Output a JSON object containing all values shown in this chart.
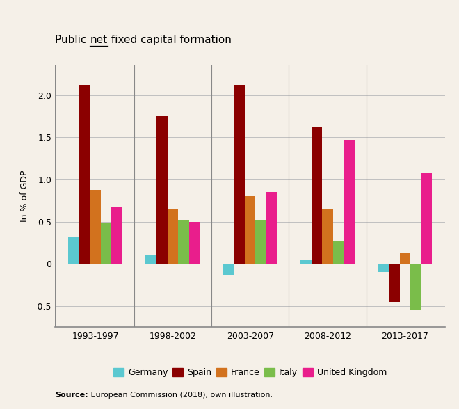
{
  "title_prefix": "Public ",
  "title_underlined": "net",
  "title_suffix": " fixed capital formation",
  "ylabel": "In % of GDP",
  "source_bold": "Source:",
  "source_rest": " European Commission (2018), own illustration.",
  "periods": [
    "1993-1997",
    "1998-2002",
    "2003-2007",
    "2008-2012",
    "2013-2017"
  ],
  "countries": [
    "Germany",
    "Spain",
    "France",
    "Italy",
    "United Kingdom"
  ],
  "colors": [
    "#5BC8D0",
    "#8B0000",
    "#D2721E",
    "#7ABD4A",
    "#E91E8C"
  ],
  "values": [
    [
      0.32,
      0.1,
      -0.13,
      0.04,
      -0.1
    ],
    [
      2.12,
      1.75,
      2.12,
      1.62,
      -0.45
    ],
    [
      0.88,
      0.65,
      0.8,
      0.65,
      0.13
    ],
    [
      0.48,
      0.52,
      0.52,
      0.27,
      -0.55
    ],
    [
      0.68,
      0.5,
      0.85,
      1.47,
      1.08
    ]
  ],
  "ylim": [
    -0.75,
    2.35
  ],
  "yticks": [
    -0.5,
    0.0,
    0.5,
    1.0,
    1.5,
    2.0
  ],
  "background_color": "#F5F0E8",
  "bar_width": 0.14,
  "title_fontsize": 11,
  "axis_fontsize": 9,
  "legend_fontsize": 9,
  "source_fontsize": 8
}
